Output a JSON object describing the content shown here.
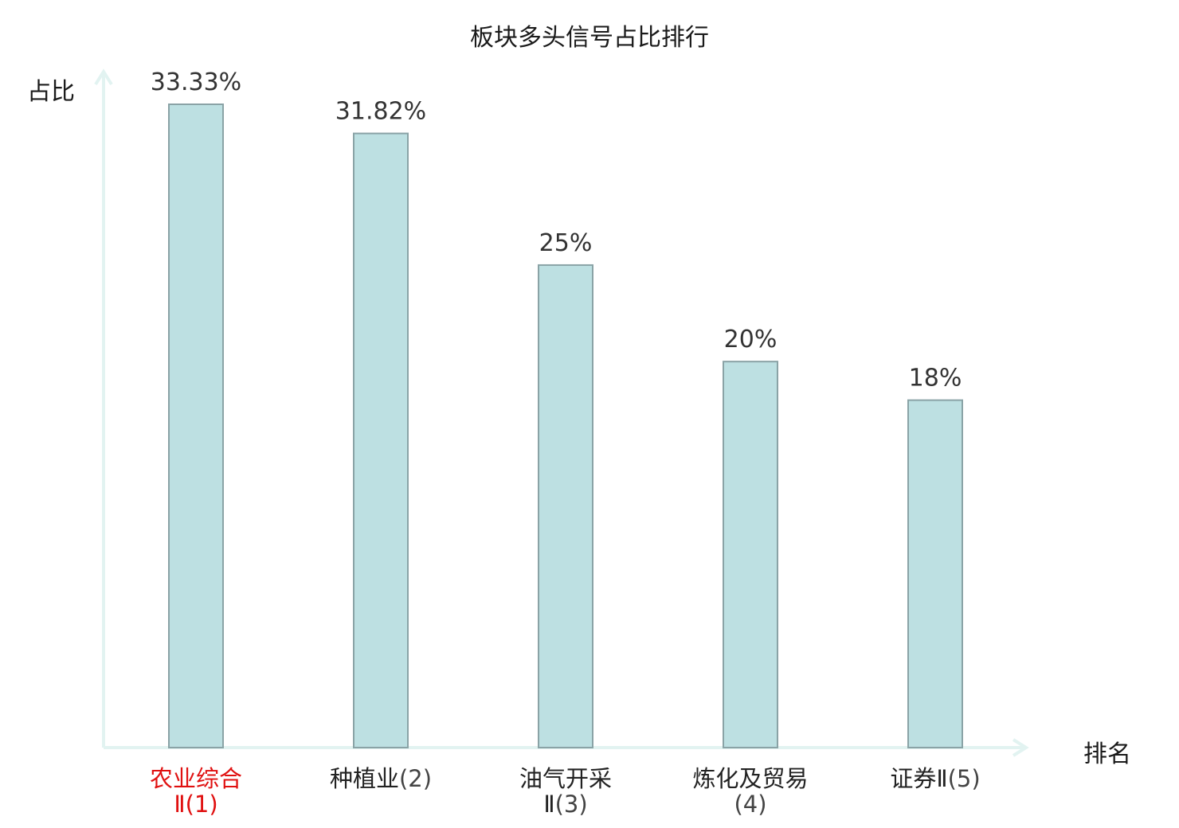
{
  "chart_data": {
    "type": "bar",
    "title": "板块多头信号占比排行",
    "ylabel": "占比",
    "xlabel": "排名",
    "categories": [
      {
        "name": "农业综合Ⅱ",
        "rank": "(1)",
        "highlight": true
      },
      {
        "name": "种植业",
        "rank": "(2)",
        "highlight": false
      },
      {
        "name": "油气开采Ⅱ",
        "rank": "(3)",
        "highlight": false
      },
      {
        "name": "炼化及贸易",
        "rank": "(4)",
        "highlight": false
      },
      {
        "name": "证券Ⅱ",
        "rank": "(5)",
        "highlight": false
      }
    ],
    "values": [
      33.33,
      31.82,
      25,
      20,
      18
    ],
    "value_labels": [
      "33.33%",
      "31.82%",
      "25%",
      "20%",
      "18%"
    ],
    "ylim": [
      0,
      35
    ],
    "grid": false,
    "colors": {
      "bar_fill": "#bde0e2",
      "bar_stroke": "#8aa3a6",
      "axis": "#e2f3f1",
      "highlight_label": "#e01010",
      "value_label": "#333333"
    }
  }
}
